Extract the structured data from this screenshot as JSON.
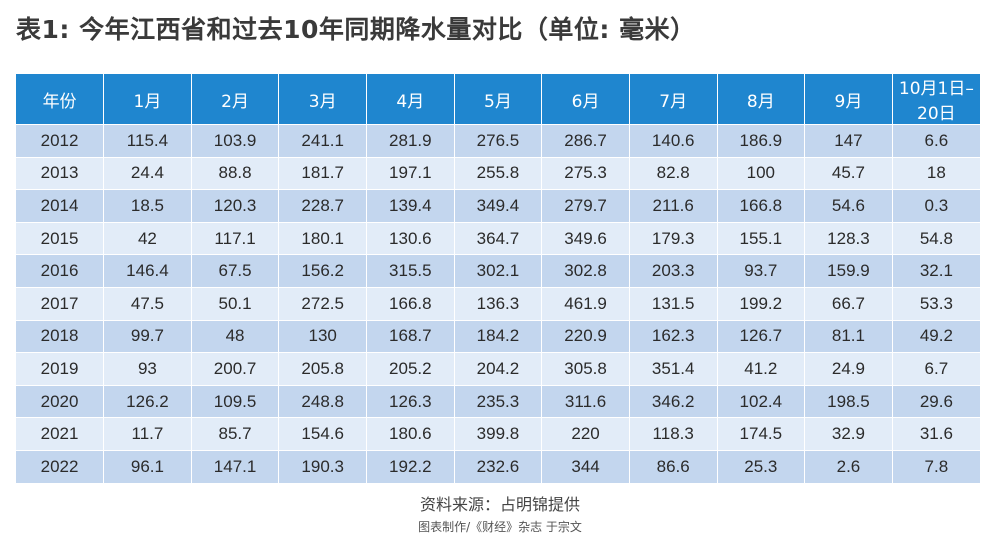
{
  "title": "表1: 今年江西省和过去10年同期降水量对比（单位: 毫米）",
  "table": {
    "headers": [
      "年份",
      "1月",
      "2月",
      "3月",
      "4月",
      "5月",
      "6月",
      "7月",
      "8月",
      "9月",
      "10月1日–20日"
    ],
    "rows": [
      [
        "2012",
        "115.4",
        "103.9",
        "241.1",
        "281.9",
        "276.5",
        "286.7",
        "140.6",
        "186.9",
        "147",
        "6.6"
      ],
      [
        "2013",
        "24.4",
        "88.8",
        "181.7",
        "197.1",
        "255.8",
        "275.3",
        "82.8",
        "100",
        "45.7",
        "18"
      ],
      [
        "2014",
        "18.5",
        "120.3",
        "228.7",
        "139.4",
        "349.4",
        "279.7",
        "211.6",
        "166.8",
        "54.6",
        "0.3"
      ],
      [
        "2015",
        "42",
        "117.1",
        "180.1",
        "130.6",
        "364.7",
        "349.6",
        "179.3",
        "155.1",
        "128.3",
        "54.8"
      ],
      [
        "2016",
        "146.4",
        "67.5",
        "156.2",
        "315.5",
        "302.1",
        "302.8",
        "203.3",
        "93.7",
        "159.9",
        "32.1"
      ],
      [
        "2017",
        "47.5",
        "50.1",
        "272.5",
        "166.8",
        "136.3",
        "461.9",
        "131.5",
        "199.2",
        "66.7",
        "53.3"
      ],
      [
        "2018",
        "99.7",
        "48",
        "130",
        "168.7",
        "184.2",
        "220.9",
        "162.3",
        "126.7",
        "81.1",
        "49.2"
      ],
      [
        "2019",
        "93",
        "200.7",
        "205.8",
        "205.2",
        "204.2",
        "305.8",
        "351.4",
        "41.2",
        "24.9",
        "6.7"
      ],
      [
        "2020",
        "126.2",
        "109.5",
        "248.8",
        "126.3",
        "235.3",
        "311.6",
        "346.2",
        "102.4",
        "198.5",
        "29.6"
      ],
      [
        "2021",
        "11.7",
        "85.7",
        "154.6",
        "180.6",
        "399.8",
        "220",
        "118.3",
        "174.5",
        "32.9",
        "31.6"
      ],
      [
        "2022",
        "96.1",
        "147.1",
        "190.3",
        "192.2",
        "232.6",
        "344",
        "86.6",
        "25.3",
        "2.6",
        "7.8"
      ]
    ]
  },
  "source": "资料来源：占明锦提供",
  "credit": "图表制作/《财经》杂志 于宗文",
  "colors": {
    "header_bg": "#1f86cf",
    "row_dark": "#c3d6ee",
    "row_light": "#e2ecf8"
  }
}
